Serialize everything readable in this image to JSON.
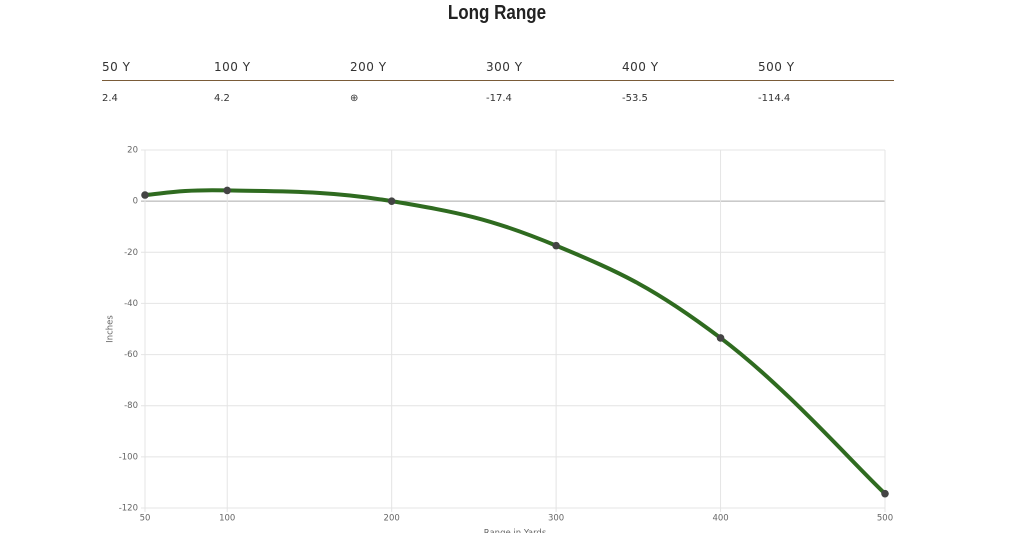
{
  "header": {
    "title": "Long Range"
  },
  "table": {
    "header": [
      "50 Y",
      "100 Y",
      "200 Y",
      "300 Y",
      "400 Y",
      "500 Y"
    ],
    "rows": [
      [
        "2.4",
        "4.2",
        "⊕",
        "-17.4",
        "-53.5",
        "-114.4"
      ]
    ]
  },
  "chart_data": {
    "type": "line",
    "x_label": "Range in Yards",
    "y_label": "Inches",
    "x": [
      50,
      100,
      200,
      300,
      400,
      500
    ],
    "values": [
      2.4,
      4.2,
      0,
      -17.4,
      -53.5,
      -114.4
    ],
    "color": "#2f6b20",
    "xlim": [
      50,
      500
    ],
    "xticks": [
      50,
      100,
      200,
      300,
      400,
      500
    ],
    "ylim": [
      -120,
      20
    ],
    "yticks": [
      -120,
      -100,
      -80,
      -60,
      -40,
      -20,
      0,
      20
    ],
    "grid": true
  }
}
